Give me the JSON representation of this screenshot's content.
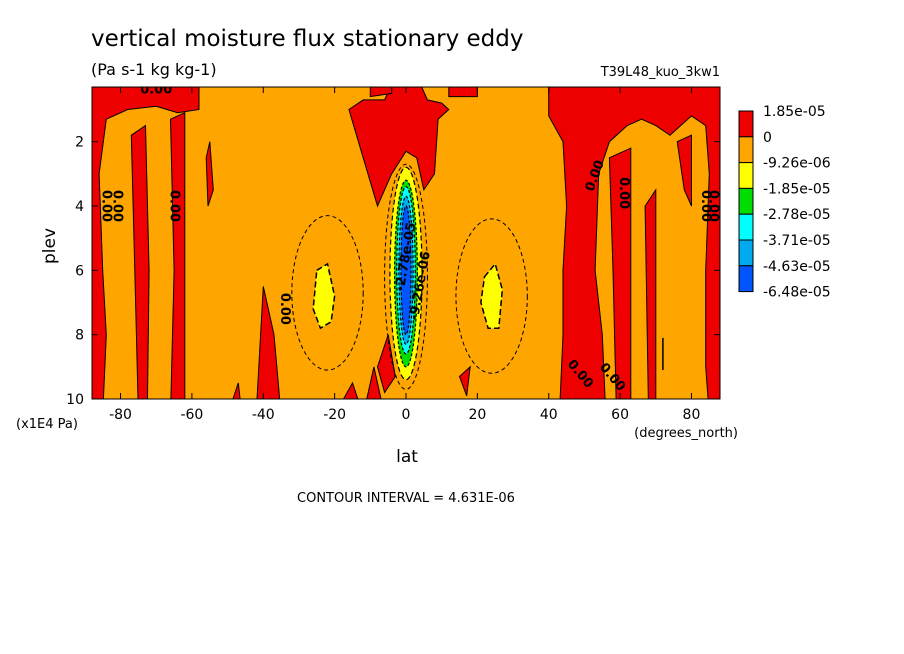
{
  "chart_data": {
    "type": "heatmap",
    "title": "vertical moisture flux stationary eddy",
    "units": "(Pa s-1 kg kg-1)",
    "run_label": "T39L48_kuo_3kw1",
    "xlabel": "lat",
    "xunits": "(degrees_north)",
    "ylabel": "plev",
    "yunits": "(x1E4 Pa)",
    "xlim": [
      -88,
      88
    ],
    "ylim": [
      10,
      0.3
    ],
    "xticks": [
      "-80",
      "-60",
      "-40",
      "-20",
      "0",
      "20",
      "40",
      "60",
      "80"
    ],
    "xtick_values": [
      -80,
      -60,
      -40,
      -20,
      0,
      20,
      40,
      60,
      80
    ],
    "yticks": [
      "2",
      "4",
      "6",
      "8",
      "10"
    ],
    "ytick_values": [
      2,
      4,
      6,
      8,
      10
    ],
    "contour_interval": "CONTOUR INTERVAL = 4.631E-06",
    "legend": [
      {
        "label": "1.85e-05",
        "color": "#ee0000"
      },
      {
        "label": "0",
        "color": "#ffa500"
      },
      {
        "label": "-9.26e-06",
        "color": "#ffff00"
      },
      {
        "label": "-1.85e-05",
        "color": "#00dd00"
      },
      {
        "label": "-2.78e-05",
        "color": "#00ffff"
      },
      {
        "label": "-3.71e-05",
        "color": "#00aaee"
      },
      {
        "label": "-4.63e-05",
        "color": "#0055ff"
      },
      {
        "label": "-6.48e-05",
        "color": "#ffffff"
      }
    ],
    "contour_labels": [
      "0.00",
      "0.00",
      "0.00",
      "0.00",
      "0.00",
      "0.00",
      "0.00",
      "0.00",
      "0.00",
      "0.00",
      "0.00",
      "0.00",
      "-9.26e-06",
      "-2.78e-05"
    ],
    "regions": {
      "positive": [
        {
          "lon": [
            -88,
            -60
          ],
          "lev": [
            0.3,
            1.2
          ]
        },
        {
          "lon": [
            -88,
            -80
          ],
          "lev": [
            0.3,
            10
          ]
        },
        {
          "lon": [
            -76,
            -70
          ],
          "lev": [
            2.5,
            10
          ]
        },
        {
          "lon": [
            -66,
            -60
          ],
          "lev": [
            1.5,
            10
          ]
        },
        {
          "lon": [
            -42,
            -36
          ],
          "lev": [
            6.5,
            10
          ]
        },
        {
          "lon": [
            -14,
            8
          ],
          "lev": [
            0.3,
            2
          ]
        },
        {
          "lon": [
            8,
            20
          ],
          "lev": [
            0.3,
            1.5
          ]
        },
        {
          "lon": [
            40,
            88
          ],
          "lev": [
            0.3,
            1.2
          ]
        },
        {
          "lon": [
            40,
            48
          ],
          "lev": [
            0.3,
            10
          ]
        },
        {
          "lon": [
            54,
            62
          ],
          "lev": [
            1.5,
            10
          ]
        },
        {
          "lon": [
            82,
            88
          ],
          "lev": [
            0.3,
            10
          ]
        }
      ],
      "negative_core": {
        "lon": [
          -5,
          5
        ],
        "lev": [
          3,
          9.5
        ],
        "min": -6.48e-05
      },
      "weak_negative": [
        {
          "lon": [
            -30,
            -20
          ],
          "lev": [
            5.5,
            8
          ]
        },
        {
          "lon": [
            20,
            30
          ],
          "lev": [
            5.5,
            8
          ]
        }
      ]
    }
  }
}
